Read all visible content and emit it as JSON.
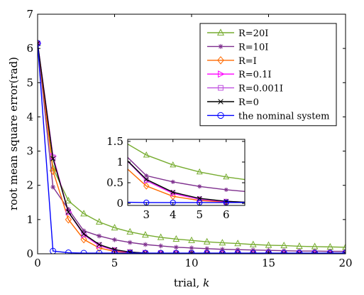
{
  "chart_data": {
    "type": "line",
    "xlabel": "trial, ",
    "xlabel_var": "k",
    "ylabel": "root mean square error(rad)",
    "xlim": [
      0,
      20
    ],
    "ylim": [
      0,
      7
    ],
    "x_ticks": [
      0,
      5,
      10,
      15,
      20
    ],
    "y_ticks": [
      0,
      1,
      2,
      3,
      4,
      5,
      6,
      7
    ],
    "legend_position": "top-right",
    "x": [
      0,
      1,
      2,
      3,
      4,
      5,
      6,
      7,
      8,
      9,
      10,
      11,
      12,
      13,
      14,
      15,
      16,
      17,
      18,
      19,
      20
    ],
    "series": [
      {
        "name": "R=20I",
        "color": "#77ac30",
        "marker": "triangle-up",
        "values": [
          6.15,
          2.5,
          1.55,
          1.17,
          0.93,
          0.76,
          0.64,
          0.55,
          0.48,
          0.43,
          0.39,
          0.35,
          0.32,
          0.3,
          0.27,
          0.25,
          0.24,
          0.22,
          0.21,
          0.2,
          0.19
        ]
      },
      {
        "name": "R=10I",
        "color": "#7e2f8e",
        "marker": "star",
        "values": [
          6.15,
          1.95,
          1.3,
          0.67,
          0.52,
          0.41,
          0.33,
          0.27,
          0.23,
          0.19,
          0.17,
          0.15,
          0.13,
          0.12,
          0.11,
          0.1,
          0.09,
          0.08,
          0.08,
          0.07,
          0.07
        ]
      },
      {
        "name": "R=I",
        "color": "#ff6a00",
        "marker": "diamond",
        "values": [
          6.15,
          2.42,
          1.0,
          0.42,
          0.17,
          0.07,
          0.03,
          0.015,
          0.01,
          0.01,
          0.01,
          0.01,
          0.01,
          0.01,
          0.01,
          0.01,
          0.01,
          0.01,
          0.01,
          0.01,
          0.01
        ]
      },
      {
        "name": "R=0.1I",
        "color": "#ff00ff",
        "marker": "triangle-right",
        "values": [
          6.15,
          2.85,
          1.22,
          0.55,
          0.24,
          0.1,
          0.04,
          0.02,
          0.01,
          0.01,
          0.01,
          0.01,
          0.01,
          0.01,
          0.01,
          0.01,
          0.01,
          0.01,
          0.01,
          0.01,
          0.01
        ]
      },
      {
        "name": "R=0.001I",
        "color": "#c050e0",
        "marker": "square",
        "values": [
          6.15,
          2.82,
          1.21,
          0.56,
          0.26,
          0.11,
          0.05,
          0.02,
          0.01,
          0.01,
          0.01,
          0.01,
          0.01,
          0.01,
          0.01,
          0.01,
          0.01,
          0.01,
          0.01,
          0.01,
          0.01
        ]
      },
      {
        "name": "R=0",
        "color": "#000000",
        "marker": "x",
        "values": [
          6.15,
          2.78,
          1.22,
          0.58,
          0.27,
          0.12,
          0.05,
          0.02,
          0.01,
          0.01,
          0.01,
          0.01,
          0.01,
          0.01,
          0.01,
          0.01,
          0.01,
          0.01,
          0.01,
          0.01,
          0.01
        ]
      },
      {
        "name": "the nominal system",
        "color": "#0000ff",
        "marker": "circle",
        "values": [
          6.15,
          0.08,
          0.03,
          0.02,
          0.02,
          0.02,
          0.02,
          0.02,
          0.02,
          0.02,
          0.02,
          0.02,
          0.02,
          0.02,
          0.02,
          0.02,
          0.02,
          0.02,
          0.02,
          0.02,
          0.02
        ]
      }
    ],
    "inset": {
      "xlim": [
        2.3,
        6.7
      ],
      "ylim": [
        -0.05,
        1.55
      ],
      "x_ticks": [
        3,
        4,
        5,
        6
      ],
      "y_ticks": [
        0,
        0.5,
        1,
        1.5
      ]
    }
  }
}
